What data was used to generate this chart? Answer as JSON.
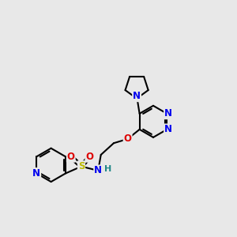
{
  "background_color": "#e8e8e8",
  "bond_color": "#000000",
  "atom_colors": {
    "N": "#0000ee",
    "O": "#dd0000",
    "S": "#bbbb00",
    "H": "#228888",
    "C": "#000000"
  },
  "bond_width": 1.5,
  "figsize": [
    3.0,
    3.0
  ],
  "dpi": 100
}
